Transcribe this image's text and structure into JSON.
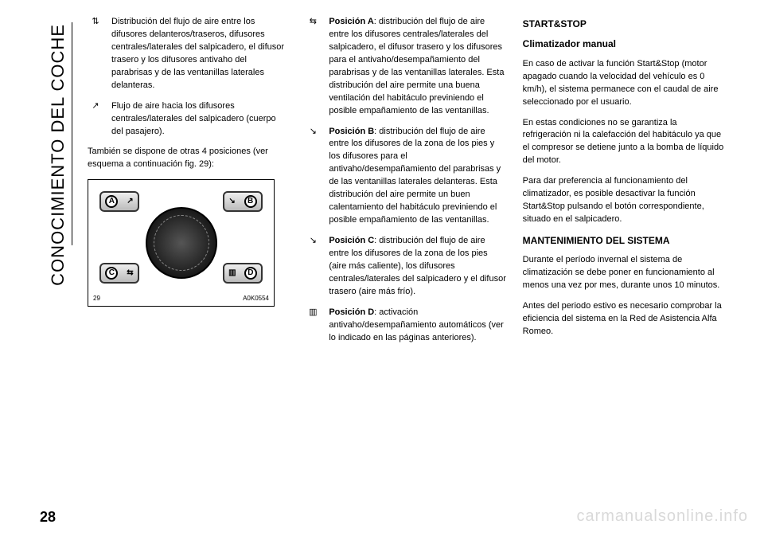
{
  "sidebar_title": "CONOCIMIENTO DEL COCHE",
  "page_number": "28",
  "watermark": "carmanualsonline.info",
  "col1": {
    "item1": "Distribución del flujo de aire entre los difusores delanteros/traseros, difusores centrales/laterales del salpicadero, el difusor trasero y los difusores antivaho del parabrisas y de las ventanillas laterales delanteras.",
    "item2": "Flujo de aire hacia los difusores centrales/laterales del salpicadero (cuerpo del pasajero).",
    "also": "También se dispone de otras 4 posiciones (ver esquema a continuación fig. 29):",
    "fig_num": "29",
    "fig_code": "A0K0554",
    "labels": {
      "a": "A",
      "b": "B",
      "c": "C",
      "d": "D"
    }
  },
  "col2": {
    "posA_label": "Posición A",
    "posA_text": ": distribución del flujo de aire entre los difusores centrales/laterales del salpicadero, el difusor trasero y los difusores para el antivaho/desempañamiento del parabrisas y de las ventanillas laterales. Esta distribución del aire permite una buena ventilación del habitáculo previniendo el posible empañamiento de las ventanillas.",
    "posB_label": "Posición B",
    "posB_text": ": distribución del flujo de aire entre los difusores de la zona de los pies y los difusores para el antivaho/desempañamiento del parabrisas y de las ventanillas laterales delanteras. Esta distribución del aire permite un buen calentamiento del habitáculo previniendo el posible empañamiento de las ventanillas.",
    "posC_label": "Posición C",
    "posC_text": ": distribución del flujo de aire entre los difusores de la zona de los pies (aire más caliente), los difusores centrales/laterales del salpicadero y el difusor trasero (aire más frío).",
    "posD_label": "Posición D",
    "posD_text": ": activación antivaho/desempañamiento automáticos (ver lo indicado en las páginas anteriores)."
  },
  "col3": {
    "h_startstop": "START&STOP",
    "h_manual": "Climatizador manual",
    "p1": "En caso de activar la función Start&Stop (motor apagado cuando la velocidad del vehículo es 0 km/h), el sistema permanece con el caudal de aire seleccionado por el usuario.",
    "p2": "En estas condiciones no se garantiza la refrigeración ni la calefacción del habitáculo ya que el compresor se detiene junto a la bomba de líquido del motor.",
    "p3": "Para dar preferencia al funcionamiento del climatizador, es posible desactivar la función Start&Stop pulsando el botón correspondiente, situado en el salpicadero.",
    "h_maint": "MANTENIMIENTO DEL SISTEMA",
    "p4": "Durante el período invernal el sistema de climatización se debe poner en funcionamiento al menos una vez por mes, durante unos 10 minutos.",
    "p5": "Antes del periodo estivo es necesario comprobar la eficiencia del sistema en la Red de Asistencia Alfa Romeo."
  },
  "icons": {
    "airflow_mix": "⇅",
    "airflow_face": "↗",
    "airflow_combo": "⇆",
    "airflow_foot": "↘",
    "defrost": "▥"
  }
}
